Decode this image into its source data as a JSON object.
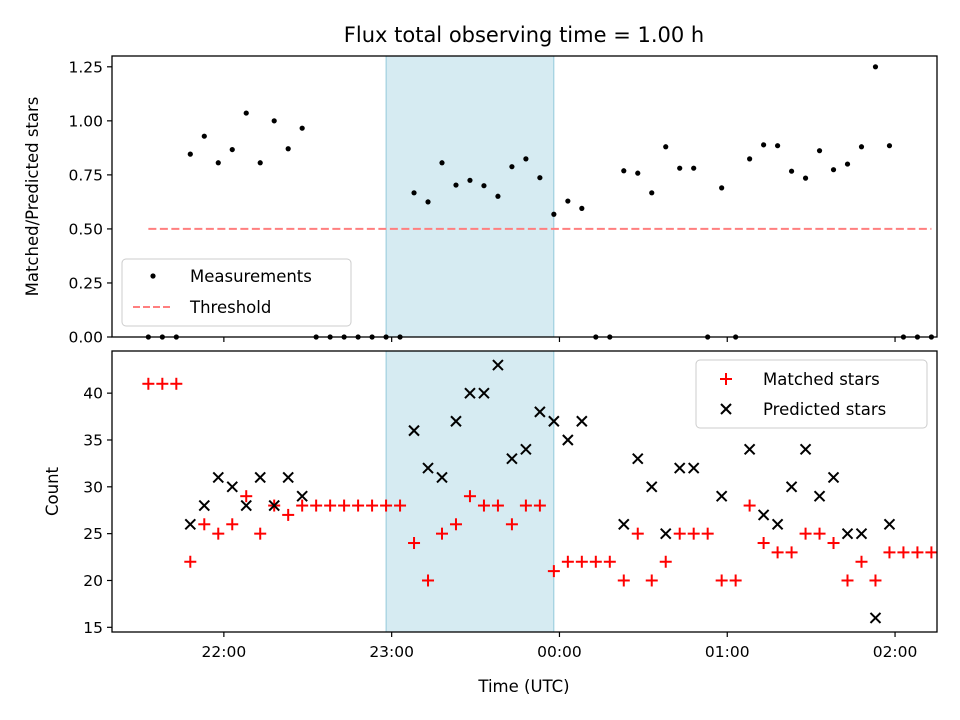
{
  "chart_data": [
    {
      "type": "scatter",
      "title": "Flux total observing time = 1.00 h",
      "xlabel": "",
      "ylabel": "Matched/Predicted stars",
      "ylim": [
        0,
        1.3
      ],
      "yticks": [
        0.0,
        0.25,
        0.5,
        0.75,
        1.0,
        1.25
      ],
      "ytick_labels": [
        "0.00",
        "0.25",
        "0.50",
        "0.75",
        "1.00",
        "1.25"
      ],
      "xlim": [
        "21:20",
        "02:15"
      ],
      "xticks": [
        "22:00",
        "23:00",
        "00:00",
        "01:00",
        "02:00"
      ],
      "grid": false,
      "legend_position": "lower-left",
      "shaded_interval": {
        "start": "22:58",
        "end": "23:58",
        "color": "#add8e6"
      },
      "series": [
        {
          "name": "Measurements",
          "style": "dot",
          "color": "#000000",
          "points": [
            [
              "21:33",
              0
            ],
            [
              "21:38",
              0
            ],
            [
              "21:43",
              0
            ],
            [
              "21:48",
              0.846
            ],
            [
              "21:53",
              0.929
            ],
            [
              "21:58",
              0.806
            ],
            [
              "22:03",
              0.867
            ],
            [
              "22:08",
              1.036
            ],
            [
              "22:13",
              0.806
            ],
            [
              "22:18",
              1.0
            ],
            [
              "22:23",
              0.871
            ],
            [
              "22:28",
              0.966
            ],
            [
              "22:33",
              0
            ],
            [
              "22:38",
              0
            ],
            [
              "22:43",
              0
            ],
            [
              "22:48",
              0
            ],
            [
              "22:53",
              0
            ],
            [
              "22:58",
              0
            ],
            [
              "23:03",
              0
            ],
            [
              "23:08",
              0.667
            ],
            [
              "23:13",
              0.625
            ],
            [
              "23:18",
              0.806
            ],
            [
              "23:23",
              0.703
            ],
            [
              "23:28",
              0.725
            ],
            [
              "23:33",
              0.7
            ],
            [
              "23:38",
              0.651
            ],
            [
              "23:43",
              0.788
            ],
            [
              "23:48",
              0.824
            ],
            [
              "23:53",
              0.737
            ],
            [
              "23:58",
              0.568
            ],
            [
              "00:03",
              0.629
            ],
            [
              "00:08",
              0.595
            ],
            [
              "00:13",
              0
            ],
            [
              "00:18",
              0
            ],
            [
              "00:23",
              0.769
            ],
            [
              "00:28",
              0.758
            ],
            [
              "00:33",
              0.667
            ],
            [
              "00:38",
              0.88
            ],
            [
              "00:43",
              0.781
            ],
            [
              "00:48",
              0.781
            ],
            [
              "00:53",
              0
            ],
            [
              "00:58",
              0.69
            ],
            [
              "01:03",
              0
            ],
            [
              "01:08",
              0.824
            ],
            [
              "01:13",
              0.889
            ],
            [
              "01:18",
              0.885
            ],
            [
              "01:23",
              0.767
            ],
            [
              "01:28",
              0.735
            ],
            [
              "01:33",
              0.862
            ],
            [
              "01:38",
              0.774
            ],
            [
              "01:43",
              0.8
            ],
            [
              "01:48",
              0.88
            ],
            [
              "01:53",
              1.25
            ],
            [
              "01:58",
              0.885
            ],
            [
              "02:03",
              0
            ],
            [
              "02:08",
              0
            ],
            [
              "02:13",
              0
            ]
          ]
        },
        {
          "name": "Threshold",
          "style": "dashed",
          "color": "#ff7f7f",
          "x": [
            "21:33",
            "02:13"
          ],
          "y": [
            0.5,
            0.5
          ]
        }
      ]
    },
    {
      "type": "scatter",
      "title": "",
      "xlabel": "Time (UTC)",
      "ylabel": "Count",
      "ylim": [
        14.5,
        44.5
      ],
      "yticks": [
        15,
        20,
        25,
        30,
        35,
        40
      ],
      "ytick_labels": [
        "15",
        "20",
        "25",
        "30",
        "35",
        "40"
      ],
      "xlim": [
        "21:20",
        "02:15"
      ],
      "xticks": [
        "22:00",
        "23:00",
        "00:00",
        "01:00",
        "02:00"
      ],
      "xtick_labels": [
        "22:00",
        "23:00",
        "00:00",
        "01:00",
        "02:00"
      ],
      "grid": false,
      "legend_position": "upper-right",
      "shaded_interval": {
        "start": "22:58",
        "end": "23:58",
        "color": "#add8e6"
      },
      "series": [
        {
          "name": "Matched stars",
          "marker": "plus",
          "color": "#ff0000",
          "points": [
            [
              "21:33",
              41
            ],
            [
              "21:38",
              41
            ],
            [
              "21:43",
              41
            ],
            [
              "21:48",
              22
            ],
            [
              "21:53",
              26
            ],
            [
              "21:58",
              25
            ],
            [
              "22:03",
              26
            ],
            [
              "22:08",
              29
            ],
            [
              "22:13",
              25
            ],
            [
              "22:18",
              28
            ],
            [
              "22:23",
              27
            ],
            [
              "22:28",
              28
            ],
            [
              "22:33",
              28
            ],
            [
              "22:38",
              28
            ],
            [
              "22:43",
              28
            ],
            [
              "22:48",
              28
            ],
            [
              "22:53",
              28
            ],
            [
              "22:58",
              28
            ],
            [
              "23:03",
              28
            ],
            [
              "23:08",
              24
            ],
            [
              "23:13",
              20
            ],
            [
              "23:18",
              25
            ],
            [
              "23:23",
              26
            ],
            [
              "23:28",
              29
            ],
            [
              "23:33",
              28
            ],
            [
              "23:38",
              28
            ],
            [
              "23:43",
              26
            ],
            [
              "23:48",
              28
            ],
            [
              "23:53",
              28
            ],
            [
              "23:58",
              21
            ],
            [
              "00:03",
              22
            ],
            [
              "00:08",
              22
            ],
            [
              "00:13",
              22
            ],
            [
              "00:18",
              22
            ],
            [
              "00:23",
              20
            ],
            [
              "00:28",
              25
            ],
            [
              "00:33",
              20
            ],
            [
              "00:38",
              22
            ],
            [
              "00:43",
              25
            ],
            [
              "00:48",
              25
            ],
            [
              "00:53",
              25
            ],
            [
              "00:58",
              20
            ],
            [
              "01:03",
              20
            ],
            [
              "01:08",
              28
            ],
            [
              "01:13",
              24
            ],
            [
              "01:18",
              23
            ],
            [
              "01:23",
              23
            ],
            [
              "01:28",
              25
            ],
            [
              "01:33",
              25
            ],
            [
              "01:38",
              24
            ],
            [
              "01:43",
              20
            ],
            [
              "01:48",
              22
            ],
            [
              "01:53",
              20
            ],
            [
              "01:58",
              23
            ],
            [
              "02:03",
              23
            ],
            [
              "02:08",
              23
            ],
            [
              "02:13",
              23
            ]
          ]
        },
        {
          "name": "Predicted stars",
          "marker": "x",
          "color": "#000000",
          "points": [
            [
              "21:48",
              26
            ],
            [
              "21:53",
              28
            ],
            [
              "21:58",
              31
            ],
            [
              "22:03",
              30
            ],
            [
              "22:08",
              28
            ],
            [
              "22:13",
              31
            ],
            [
              "22:18",
              28
            ],
            [
              "22:23",
              31
            ],
            [
              "22:28",
              29
            ],
            [
              "23:08",
              36
            ],
            [
              "23:13",
              32
            ],
            [
              "23:18",
              31
            ],
            [
              "23:23",
              37
            ],
            [
              "23:28",
              40
            ],
            [
              "23:33",
              40
            ],
            [
              "23:38",
              43
            ],
            [
              "23:43",
              33
            ],
            [
              "23:48",
              34
            ],
            [
              "23:53",
              38
            ],
            [
              "23:58",
              37
            ],
            [
              "00:03",
              35
            ],
            [
              "00:08",
              37
            ],
            [
              "00:23",
              26
            ],
            [
              "00:28",
              33
            ],
            [
              "00:33",
              30
            ],
            [
              "00:38",
              25
            ],
            [
              "00:43",
              32
            ],
            [
              "00:48",
              32
            ],
            [
              "00:58",
              29
            ],
            [
              "01:08",
              34
            ],
            [
              "01:13",
              27
            ],
            [
              "01:18",
              26
            ],
            [
              "01:23",
              30
            ],
            [
              "01:28",
              34
            ],
            [
              "01:33",
              29
            ],
            [
              "01:38",
              31
            ],
            [
              "01:43",
              25
            ],
            [
              "01:48",
              25
            ],
            [
              "01:53",
              16
            ],
            [
              "01:58",
              26
            ]
          ]
        }
      ]
    }
  ]
}
